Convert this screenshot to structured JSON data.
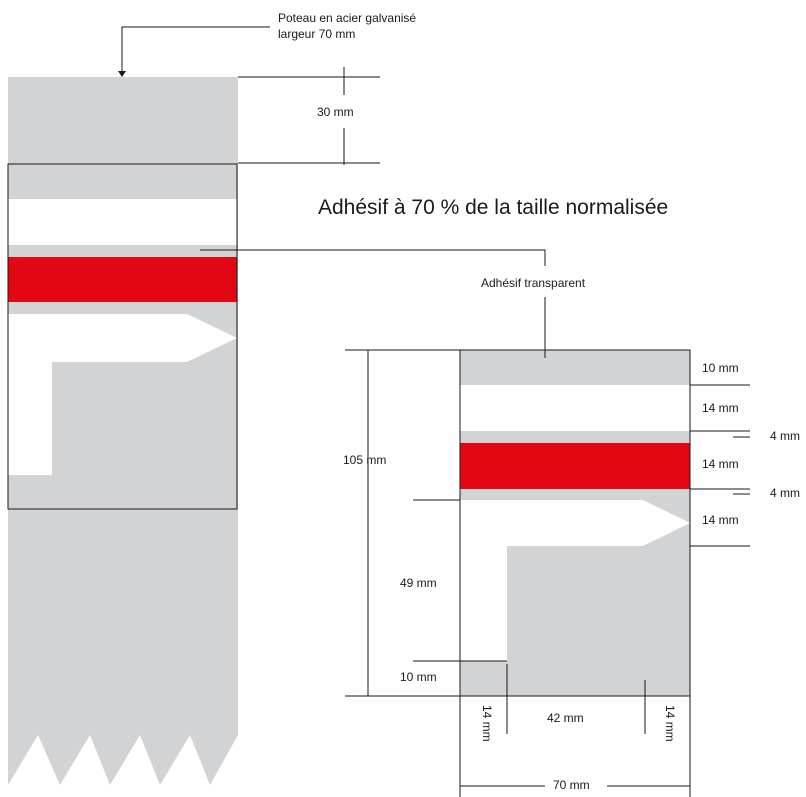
{
  "callouts": {
    "pole_line1": "Poteau en acier galvanisé",
    "pole_line2": "largeur 70 mm",
    "transparent": "Adhésif transparent"
  },
  "title": "Adhésif à 70 % de la taille normalisée",
  "dimensions": {
    "top_gap": "30 mm",
    "total_height": "105 mm",
    "band_top": "10 mm",
    "band_white": "14 mm",
    "gap_1": "4 mm",
    "band_red": "14 mm",
    "gap_2": "4 mm",
    "arrow_head": "14 mm",
    "arrow_shaft": "49 mm",
    "bottom": "10 mm",
    "left_margin": "14 mm",
    "middle": "42 mm",
    "right_margin": "14 mm",
    "width": "70 mm"
  },
  "colors": {
    "pole_gray": "#d1d3d5",
    "red": "#e30613",
    "white": "#ffffff",
    "line": "#1a1a1a"
  }
}
